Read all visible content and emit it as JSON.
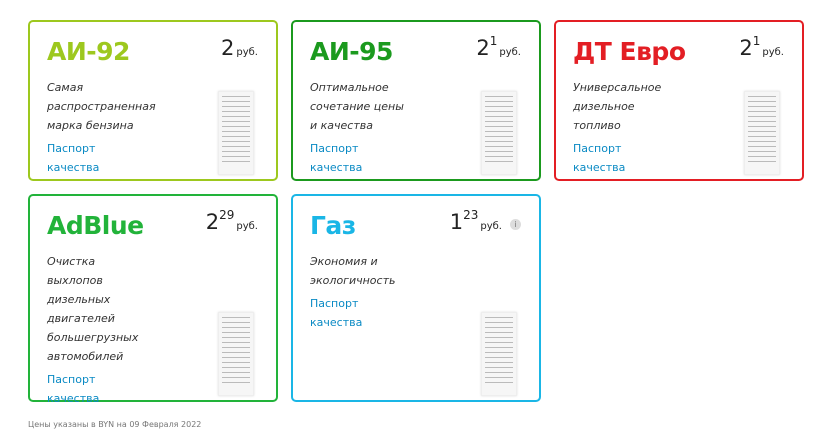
{
  "cards": [
    {
      "title": "АИ-92",
      "color": "#9dc81e",
      "price_int": "2",
      "price_frac": "",
      "currency": "руб.",
      "desc": [
        "Самая",
        "распространенная",
        "марка бензина"
      ],
      "link": [
        "Паспорт",
        "качества"
      ]
    },
    {
      "title": "АИ-95",
      "color": "#1b9a1e",
      "price_int": "2",
      "price_frac": "1",
      "currency": "руб.",
      "desc": [
        "Оптимальное",
        "сочетание цены",
        "и качества"
      ],
      "link": [
        "Паспорт",
        "качества"
      ]
    },
    {
      "title": "ДТ Евро",
      "color": "#e31e24",
      "price_int": "2",
      "price_frac": "1",
      "currency": "руб.",
      "desc": [
        "Универсальное",
        "дизельное",
        "топливо"
      ],
      "link": [
        "Паспорт",
        "качества"
      ]
    },
    {
      "title": "AdBlue",
      "color": "#22b33a",
      "price_int": "2",
      "price_frac": "29",
      "currency": "руб.",
      "desc": [
        "Очистка",
        "выхлопов",
        "дизельных",
        "двигателей",
        "большегрузных",
        "автомобилей"
      ],
      "link": [
        "Паспорт",
        "качества"
      ]
    },
    {
      "title": "Газ",
      "color": "#1ab6e6",
      "price_int": "1",
      "price_frac": "23",
      "currency": "руб.",
      "info": "i",
      "desc": [
        "Экономия и",
        "экологичность"
      ],
      "link": [
        "Паспорт",
        "качества"
      ]
    }
  ],
  "footer": "Цены указаны в BYN на  09 Февраля 2022",
  "link_color": "#0a8ac4"
}
